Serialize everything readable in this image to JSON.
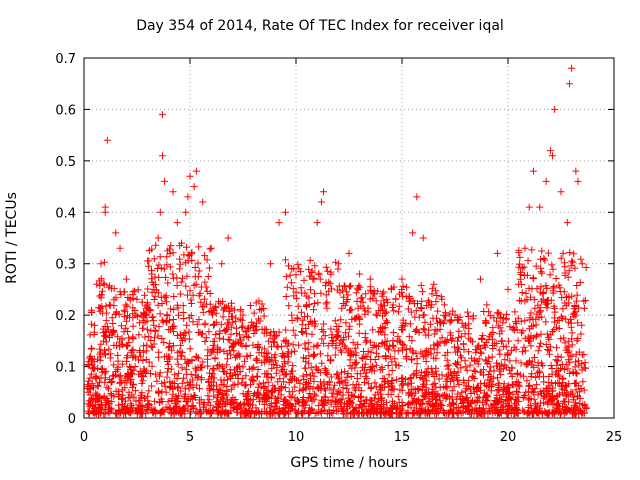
{
  "chart_data": {
    "type": "scatter",
    "title": "Day 354 of 2014, Rate Of TEC Index for receiver iqal",
    "xlabel": "GPS time / hours",
    "ylabel": "ROTI / TECUs",
    "xlim": [
      0,
      25
    ],
    "ylim": [
      0,
      0.7
    ],
    "xticks": [
      0,
      5,
      10,
      15,
      20,
      25
    ],
    "yticks": [
      0,
      0.1,
      0.2,
      0.3,
      0.4,
      0.5,
      0.6,
      0.7
    ],
    "grid": true,
    "marker": "+",
    "color": "#ff0000",
    "series": [
      {
        "name": "ROTI",
        "points": [
          [
            0.2,
            0.05
          ],
          [
            0.3,
            0.12
          ],
          [
            0.5,
            0.18
          ],
          [
            0.6,
            0.26
          ],
          [
            0.8,
            0.3
          ],
          [
            1.0,
            0.4
          ],
          [
            1.0,
            0.41
          ],
          [
            1.1,
            0.54
          ],
          [
            1.2,
            0.22
          ],
          [
            1.5,
            0.36
          ],
          [
            1.7,
            0.33
          ],
          [
            2.0,
            0.27
          ],
          [
            2.3,
            0.24
          ],
          [
            2.7,
            0.2
          ],
          [
            3.0,
            0.22
          ],
          [
            3.2,
            0.28
          ],
          [
            3.5,
            0.35
          ],
          [
            3.6,
            0.4
          ],
          [
            3.7,
            0.51
          ],
          [
            3.7,
            0.59
          ],
          [
            3.8,
            0.46
          ],
          [
            4.2,
            0.44
          ],
          [
            4.4,
            0.38
          ],
          [
            4.6,
            0.34
          ],
          [
            4.8,
            0.4
          ],
          [
            4.9,
            0.43
          ],
          [
            5.0,
            0.47
          ],
          [
            5.2,
            0.45
          ],
          [
            5.3,
            0.48
          ],
          [
            5.6,
            0.42
          ],
          [
            6.0,
            0.33
          ],
          [
            6.5,
            0.3
          ],
          [
            6.8,
            0.35
          ],
          [
            7.5,
            0.2
          ],
          [
            8.0,
            0.18
          ],
          [
            8.5,
            0.12
          ],
          [
            8.8,
            0.3
          ],
          [
            9.2,
            0.38
          ],
          [
            9.5,
            0.4
          ],
          [
            9.8,
            0.29
          ],
          [
            10.5,
            0.22
          ],
          [
            11.0,
            0.38
          ],
          [
            11.2,
            0.42
          ],
          [
            11.3,
            0.44
          ],
          [
            12.0,
            0.3
          ],
          [
            12.5,
            0.32
          ],
          [
            13.0,
            0.28
          ],
          [
            13.5,
            0.27
          ],
          [
            14.0,
            0.22
          ],
          [
            14.5,
            0.25
          ],
          [
            15.0,
            0.27
          ],
          [
            15.5,
            0.36
          ],
          [
            15.7,
            0.43
          ],
          [
            16.0,
            0.35
          ],
          [
            16.5,
            0.26
          ],
          [
            17.0,
            0.22
          ],
          [
            17.5,
            0.2
          ],
          [
            18.0,
            0.18
          ],
          [
            18.7,
            0.27
          ],
          [
            19.0,
            0.22
          ],
          [
            19.5,
            0.32
          ],
          [
            20.0,
            0.25
          ],
          [
            20.5,
            0.26
          ],
          [
            20.8,
            0.33
          ],
          [
            21.0,
            0.41
          ],
          [
            21.2,
            0.48
          ],
          [
            21.5,
            0.41
          ],
          [
            21.8,
            0.46
          ],
          [
            22.0,
            0.52
          ],
          [
            22.1,
            0.51
          ],
          [
            22.2,
            0.6
          ],
          [
            22.5,
            0.44
          ],
          [
            22.8,
            0.38
          ],
          [
            22.9,
            0.65
          ],
          [
            23.0,
            0.68
          ],
          [
            23.2,
            0.48
          ],
          [
            23.3,
            0.46
          ],
          [
            23.5,
            0.3
          ]
        ]
      }
    ]
  }
}
